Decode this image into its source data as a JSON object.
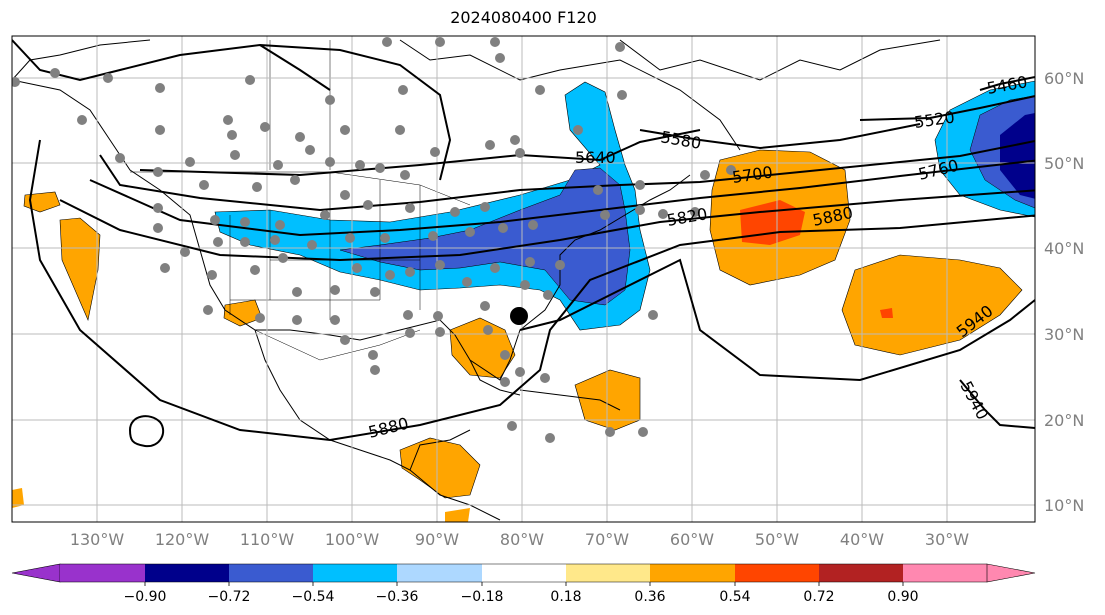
{
  "title": "2024080400 F120",
  "map": {
    "lon_labels": [
      "130°W",
      "120°W",
      "110°W",
      "100°W",
      "90°W",
      "80°W",
      "70°W",
      "60°W",
      "50°W",
      "40°W",
      "30°W"
    ],
    "lat_labels": [
      "60°N",
      "50°N",
      "40°N",
      "30°N",
      "20°N",
      "10°N"
    ],
    "contour_labels": [
      "5460",
      "5520",
      "5580",
      "5640",
      "5700",
      "5760",
      "5820",
      "5880",
      "5940",
      "5880",
      "5940"
    ],
    "colors": {
      "deep_blue": "#00008b",
      "royal_blue": "#3a5bd0",
      "sky_blue": "#00bfff",
      "orange": "#ffa500",
      "red_orange": "#ff4500"
    }
  },
  "colorbar": {
    "ticks": [
      "−0.90",
      "−0.72",
      "−0.54",
      "−0.36",
      "−0.18",
      "0.18",
      "0.36",
      "0.54",
      "0.72",
      "0.90"
    ],
    "colors": [
      "#9932cc",
      "#00008b",
      "#3a5bd0",
      "#00bfff",
      "#add8ff",
      "#ffffff",
      "#ffe88a",
      "#ffa500",
      "#ff4500",
      "#b22222",
      "#ff88b0"
    ]
  }
}
